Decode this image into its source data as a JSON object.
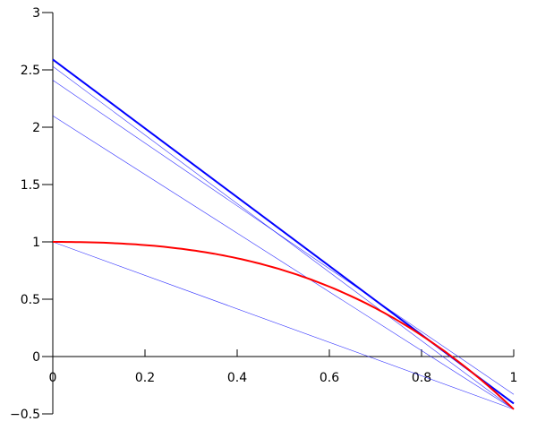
{
  "chart_data": {
    "type": "line",
    "xlim": [
      0,
      1
    ],
    "ylim": [
      -0.5,
      3
    ],
    "x_ticks": [
      "0",
      "0.2",
      "0.4",
      "0.6",
      "0.8",
      "1"
    ],
    "y_ticks": [
      "−0.5",
      "0",
      "0.5",
      "1",
      "1.5",
      "2",
      "2.5",
      "3"
    ],
    "x_tick_values": [
      0,
      0.2,
      0.4,
      0.6,
      0.8,
      1
    ],
    "y_tick_values": [
      -0.5,
      0,
      0.5,
      1,
      1.5,
      2,
      2.5,
      3
    ],
    "grid": false,
    "curve": {
      "color": "#ff0000",
      "x_range": [
        0,
        1
      ],
      "values_at": {
        "0": 1,
        "0.2": 0.972,
        "0.4": 0.857,
        "0.6": 0.609,
        "0.8": 0.185,
        "1": -0.46
      }
    },
    "lines": [
      {
        "x": [
          0,
          1
        ],
        "y": [
          1,
          -0.46
        ],
        "color": "#0000ff",
        "weight": "thin"
      },
      {
        "x": [
          0,
          1
        ],
        "y": [
          2.1,
          -0.46
        ],
        "color": "#0000ff",
        "weight": "thin"
      },
      {
        "x": [
          0,
          1
        ],
        "y": [
          2.41,
          -0.33
        ],
        "color": "#0000ff",
        "weight": "thin"
      },
      {
        "x": [
          0,
          1
        ],
        "y": [
          2.53,
          -0.46
        ],
        "color": "#0000ff",
        "weight": "thin"
      },
      {
        "x": [
          0,
          1
        ],
        "y": [
          2.59,
          -0.41
        ],
        "color": "#0000ff",
        "weight": "bold"
      }
    ]
  }
}
